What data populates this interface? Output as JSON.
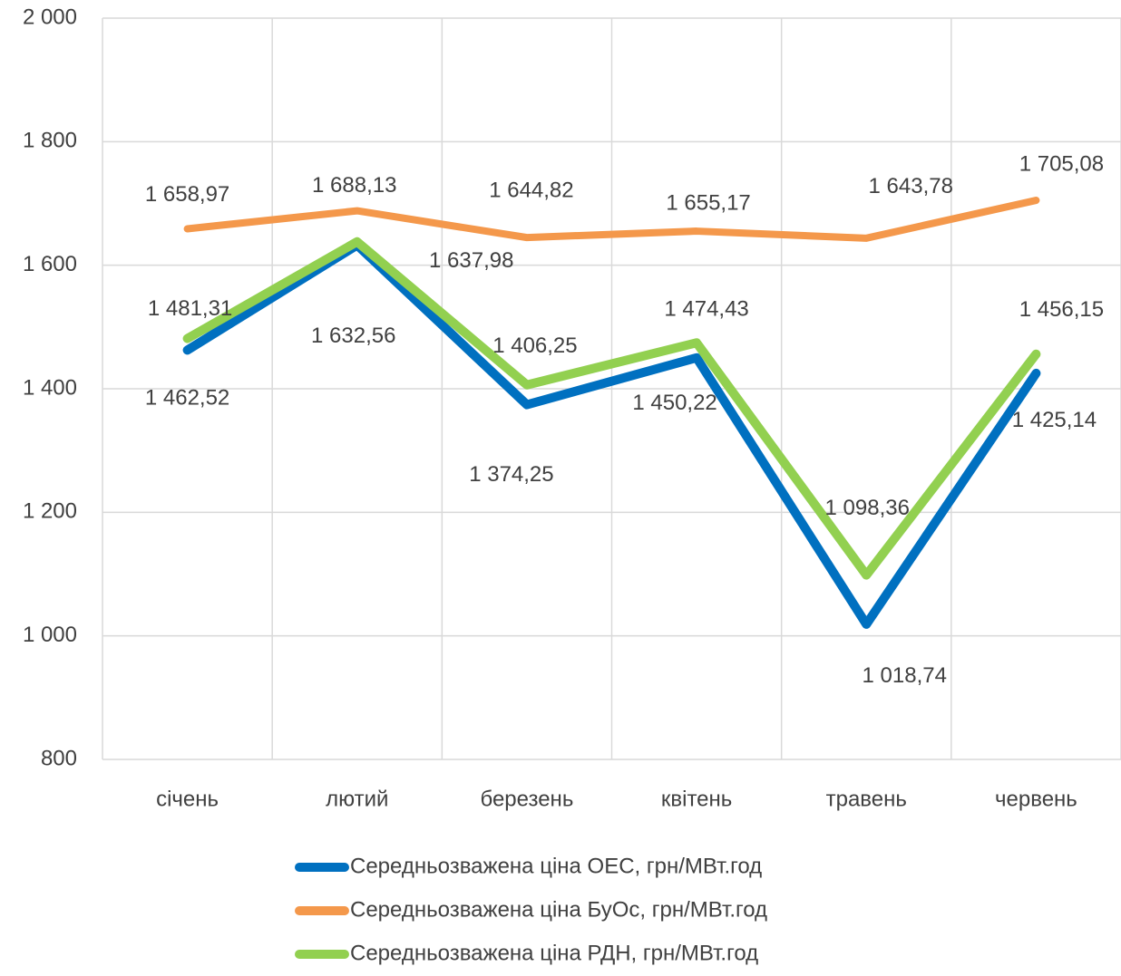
{
  "chart_data": {
    "type": "line",
    "categories": [
      "січень",
      "лютий",
      "березень",
      "квітень",
      "травень",
      "червень"
    ],
    "series": [
      {
        "name": "Середньозважена ціна ОЕС, грн/МВт.год",
        "color": "#0070c0",
        "values": [
          1462.52,
          1632.56,
          1374.25,
          1450.22,
          1018.74,
          1425.14
        ],
        "value_labels": [
          "1 462,52",
          "1 632,56",
          "1 374,25",
          "1 450,22",
          "1 018,74",
          "1 425,14"
        ]
      },
      {
        "name": "Середньозважена ціна БуОс, грн/МВт.год",
        "color": "#f4984b",
        "values": [
          1658.97,
          1688.13,
          1644.82,
          1655.17,
          1643.78,
          1705.08
        ],
        "value_labels": [
          "1 658,97",
          "1 688,13",
          "1 644,82",
          "1 655,17",
          "1 643,78",
          "1 705,08"
        ]
      },
      {
        "name": "Середньозважена ціна РДН, грн/МВт.год",
        "color": "#92d050",
        "values": [
          1481.31,
          1637.98,
          1406.25,
          1474.43,
          1098.36,
          1456.15
        ],
        "value_labels": [
          "1 481,31",
          "1 637,98",
          "1 406,25",
          "1 474,43",
          "1 098,36",
          "1 456,15"
        ]
      }
    ],
    "ylim": [
      800,
      2000
    ],
    "yticks": [
      800,
      {
        "value": 1000,
        "label": "1 000"
      },
      {
        "value": 1200,
        "label": "1 200"
      },
      {
        "value": 1400,
        "label": "1 400"
      },
      {
        "value": 1600,
        "label": "1 600"
      },
      {
        "value": 1800,
        "label": "1 800"
      },
      {
        "value": 2000,
        "label": "2 000"
      }
    ],
    "grid": true
  }
}
